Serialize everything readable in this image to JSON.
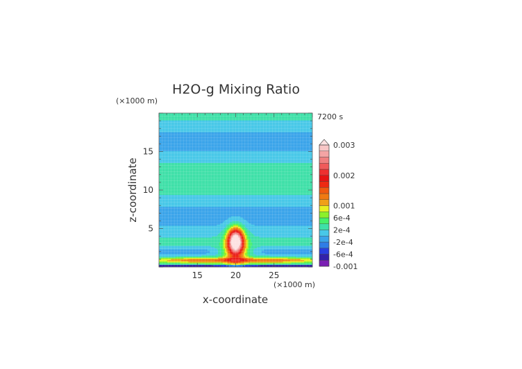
{
  "chart_data": {
    "type": "heatmap",
    "title": "H2O-g Mixing Ratio",
    "time_label": "7200 s",
    "xlabel": "x-coordinate",
    "ylabel": "z-coordinate",
    "x_unit": "(×1000 m)",
    "y_unit": "(×1000 m)",
    "xlim": [
      10,
      30
    ],
    "ylim": [
      0,
      20
    ],
    "x_ticks": [
      15,
      20,
      25
    ],
    "y_ticks": [
      5,
      10,
      15
    ],
    "grid": true,
    "legend_position": "right",
    "colorbar": {
      "labels": [
        {
          "text": "0.003",
          "value": 0.003
        },
        {
          "text": "0.002",
          "value": 0.002
        },
        {
          "text": "0.001",
          "value": 0.001
        },
        {
          "text": "6e-4",
          "value": 0.0006
        },
        {
          "text": "2e-4",
          "value": 0.0002
        },
        {
          "text": "-2e-4",
          "value": -0.0002
        },
        {
          "text": "-6e-4",
          "value": -0.0006
        },
        {
          "text": "-0.001",
          "value": -0.001
        }
      ],
      "levels": [
        -0.001,
        -0.0008,
        -0.0006,
        -0.0004,
        -0.0002,
        0.0,
        0.0002,
        0.0004,
        0.0006,
        0.0008,
        0.001,
        0.0012,
        0.0014,
        0.0016,
        0.0018,
        0.002,
        0.0022,
        0.0024,
        0.0026,
        0.0028,
        0.003
      ],
      "colors": [
        "#7a1fb3",
        "#3322aa",
        "#2a3fe0",
        "#2f7de6",
        "#3aa4ea",
        "#48c8e8",
        "#3fe0a8",
        "#46f06a",
        "#8cf02a",
        "#e8f020",
        "#f0a018",
        "#f07a12",
        "#f05a10",
        "#ee2a12",
        "#e61414",
        "#ee3030",
        "#f05a5a",
        "#f08080",
        "#f4a4a4",
        "#f8c6c6"
      ],
      "over_color": "#fde2e2"
    }
  }
}
